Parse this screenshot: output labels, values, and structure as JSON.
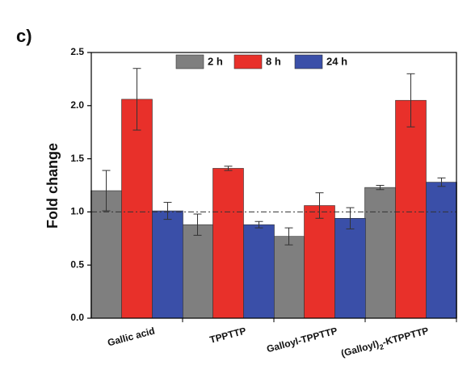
{
  "chart_data": {
    "type": "bar",
    "panel_label": "c)",
    "ylabel": "Fold change",
    "categories": [
      "Gallic acid",
      "TPPTTP",
      "Galloyl-TPPTTP",
      "(Galloyl)2-KTPPTTP"
    ],
    "series": [
      {
        "name": "2 h",
        "color": "#7f7f7f",
        "values": [
          1.2,
          0.88,
          0.77,
          1.23
        ],
        "errors": [
          0.19,
          0.1,
          0.08,
          0.02
        ]
      },
      {
        "name": "8 h",
        "color": "#e8302a",
        "values": [
          2.06,
          1.41,
          1.06,
          2.05
        ],
        "errors": [
          0.29,
          0.02,
          0.12,
          0.25
        ]
      },
      {
        "name": "24 h",
        "color": "#3a4fa8",
        "values": [
          1.01,
          0.88,
          0.94,
          1.28
        ],
        "errors": [
          0.08,
          0.03,
          0.1,
          0.04
        ]
      }
    ],
    "ylim": [
      0,
      2.5
    ],
    "yticks": [
      {
        "value": 0,
        "label": "0.0"
      },
      0.5,
      {
        "value": 1,
        "label": "1.0"
      },
      1.5,
      {
        "value": 2,
        "label": "2.0"
      },
      2.5
    ],
    "reference_line": 1,
    "legend": "top"
  }
}
